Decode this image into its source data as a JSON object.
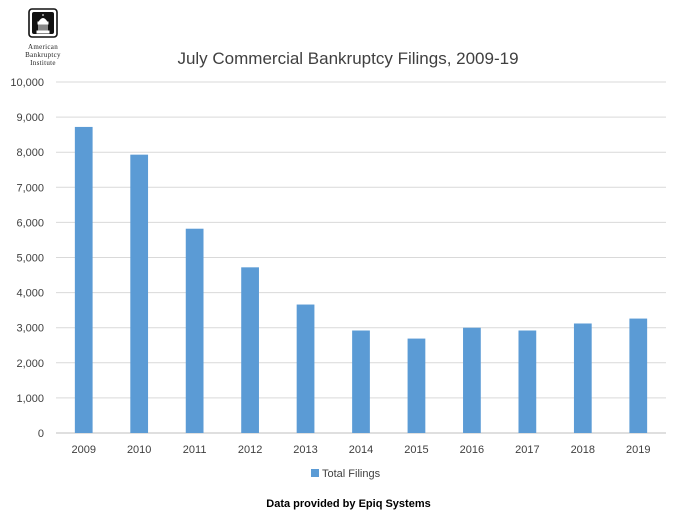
{
  "logo": {
    "lines": [
      "American",
      "Bankruptcy",
      "Institute"
    ]
  },
  "footer": "Data provided by Epiq Systems",
  "colors": {
    "bar": "#5B9BD5",
    "grid": "#D9D9D9",
    "axis": "#BFBFBF",
    "text": "#404040",
    "title": "#404040"
  },
  "chart_data": {
    "type": "bar",
    "title": "July Commercial Bankruptcy Filings, 2009-19",
    "xlabel": "",
    "ylabel": "",
    "categories": [
      "2009",
      "2010",
      "2011",
      "2012",
      "2013",
      "2014",
      "2015",
      "2016",
      "2017",
      "2018",
      "2019"
    ],
    "series": [
      {
        "name": "Total Filings",
        "values": [
          8720,
          7930,
          5820,
          4720,
          3660,
          2920,
          2690,
          3000,
          2920,
          3120,
          3260
        ]
      }
    ],
    "ylim": [
      0,
      10000
    ],
    "yticks": [
      "0",
      "1,000",
      "2,000",
      "3,000",
      "4,000",
      "5,000",
      "6,000",
      "7,000",
      "8,000",
      "9,000",
      "10,000"
    ],
    "grid": true,
    "legend_position": "bottom"
  }
}
